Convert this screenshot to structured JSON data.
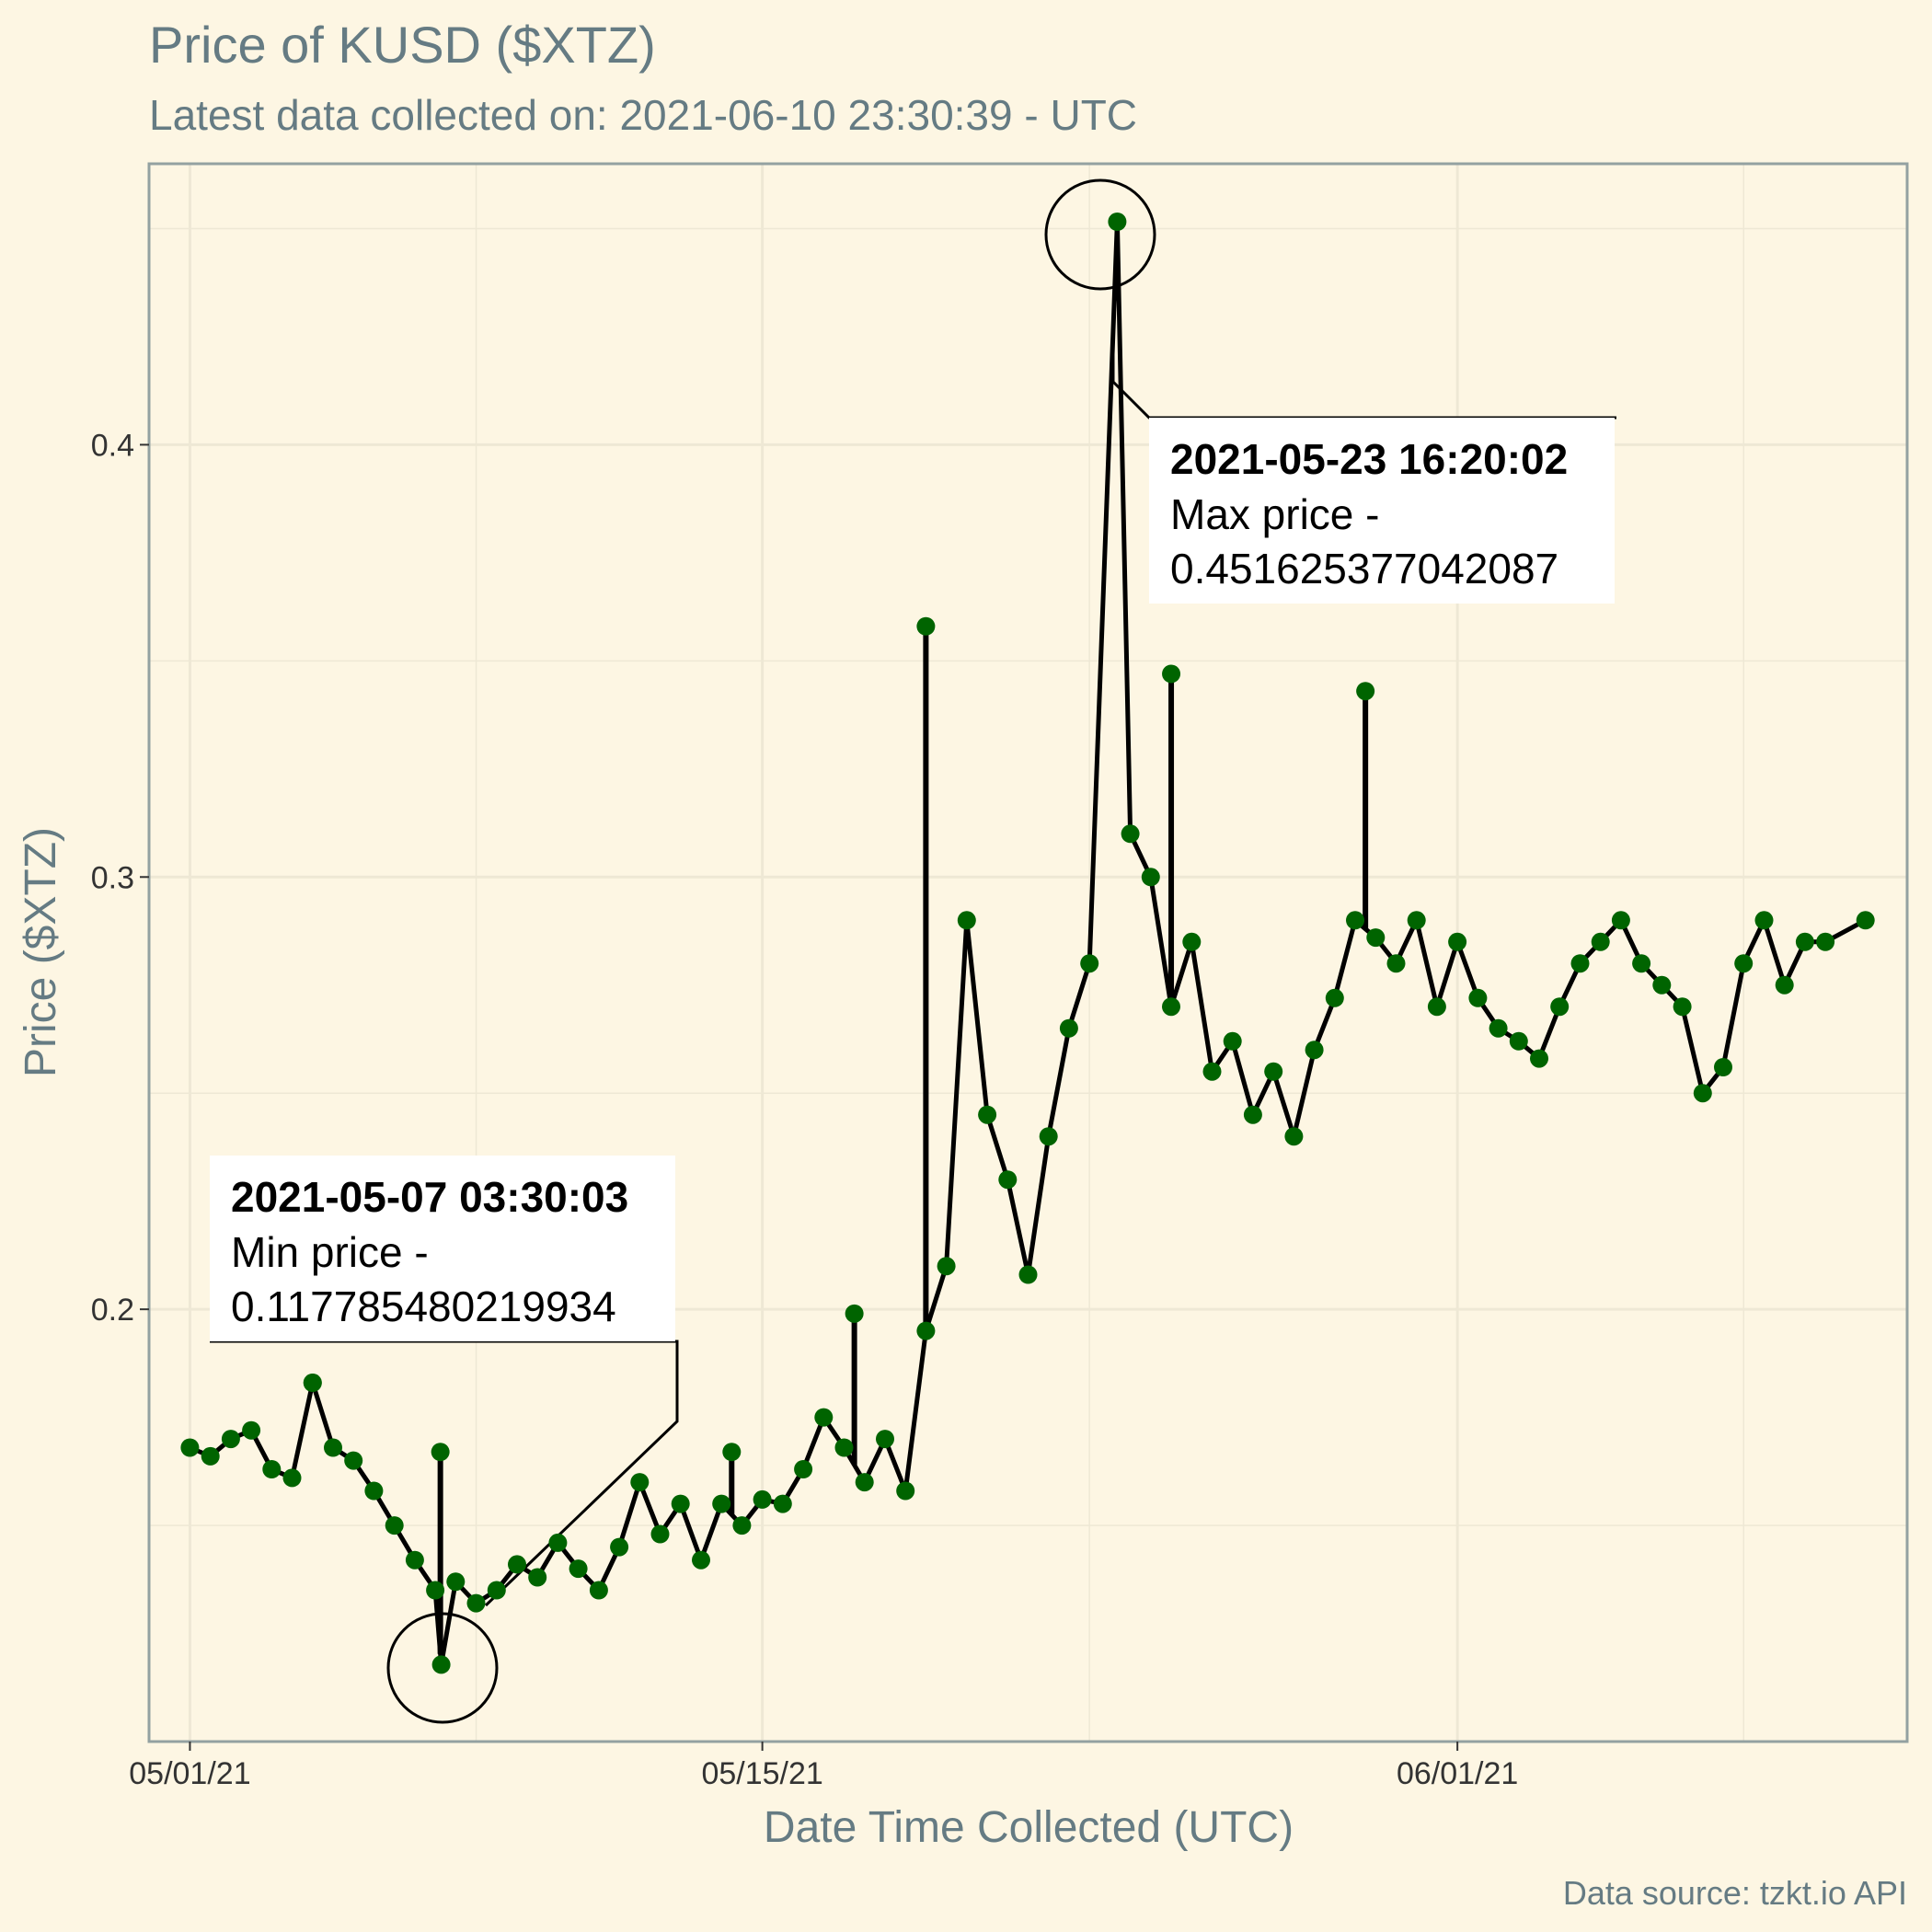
{
  "chart_data": {
    "type": "line",
    "title": "Price of KUSD ($XTZ)",
    "subtitle": "Latest data collected on: 2021-06-10 23:30:39  - UTC",
    "xlabel": "Date Time Collected (UTC)",
    "ylabel": "Price ($XTZ)",
    "caption": "Data source: tzkt.io API",
    "x_ticks": [
      "05/01/21",
      "05/15/21",
      "06/01/21"
    ],
    "y_ticks": [
      "0.2",
      "0.3",
      "0.4"
    ],
    "ylim": [
      0.1,
      0.465
    ],
    "xlim": [
      "2021-04-30",
      "2021-06-12"
    ],
    "grid": true,
    "colors": {
      "line": "#000000",
      "points": "#006400",
      "background": "#fdf6e3",
      "panel_border": "#93a1a1",
      "grid": "#eee8d5"
    },
    "series": [
      {
        "x": [
          "2021-05-01",
          "2021-05-01T12:00",
          "2021-05-02",
          "2021-05-02T12:00",
          "2021-05-03",
          "2021-05-03T12:00",
          "2021-05-04",
          "2021-05-04T12:00",
          "2021-05-05",
          "2021-05-05T12:00",
          "2021-05-06",
          "2021-05-06T12:00",
          "2021-05-07",
          "2021-05-07T03:30:03",
          "2021-05-07T12:00",
          "2021-05-08",
          "2021-05-08T12:00",
          "2021-05-09",
          "2021-05-09T12:00",
          "2021-05-10",
          "2021-05-10T12:00",
          "2021-05-11",
          "2021-05-11T12:00",
          "2021-05-12",
          "2021-05-12T12:00",
          "2021-05-13",
          "2021-05-13T12:00",
          "2021-05-14",
          "2021-05-14T12:00",
          "2021-05-15",
          "2021-05-15T12:00",
          "2021-05-16",
          "2021-05-16T12:00",
          "2021-05-17",
          "2021-05-17T12:00",
          "2021-05-18",
          "2021-05-18T12:00",
          "2021-05-19",
          "2021-05-19T12:00",
          "2021-05-20",
          "2021-05-20T12:00",
          "2021-05-21",
          "2021-05-21T12:00",
          "2021-05-22",
          "2021-05-22T12:00",
          "2021-05-23",
          "2021-05-23T16:20:02",
          "2021-05-24",
          "2021-05-24T12:00",
          "2021-05-25",
          "2021-05-25T12:00",
          "2021-05-26",
          "2021-05-26T12:00",
          "2021-05-27",
          "2021-05-27T12:00",
          "2021-05-28",
          "2021-05-28T12:00",
          "2021-05-29",
          "2021-05-29T12:00",
          "2021-05-30",
          "2021-05-30T12:00",
          "2021-05-31",
          "2021-05-31T12:00",
          "2021-06-01",
          "2021-06-01T12:00",
          "2021-06-02",
          "2021-06-02T12:00",
          "2021-06-03",
          "2021-06-03T12:00",
          "2021-06-04",
          "2021-06-04T12:00",
          "2021-06-05",
          "2021-06-05T12:00",
          "2021-06-06",
          "2021-06-06T12:00",
          "2021-06-07",
          "2021-06-07T12:00",
          "2021-06-08",
          "2021-06-08T12:00",
          "2021-06-09",
          "2021-06-09T12:00",
          "2021-06-10",
          "2021-06-10T23:30:39"
        ],
        "y": [
          0.168,
          0.166,
          0.17,
          0.172,
          0.163,
          0.161,
          0.183,
          0.168,
          0.165,
          0.158,
          0.15,
          0.142,
          0.135,
          0.1178,
          0.137,
          0.132,
          0.135,
          0.141,
          0.138,
          0.146,
          0.14,
          0.135,
          0.145,
          0.16,
          0.148,
          0.155,
          0.142,
          0.155,
          0.15,
          0.156,
          0.155,
          0.163,
          0.175,
          0.168,
          0.16,
          0.17,
          0.158,
          0.195,
          0.21,
          0.29,
          0.245,
          0.23,
          0.208,
          0.24,
          0.265,
          0.28,
          0.4516,
          0.31,
          0.3,
          0.27,
          0.285,
          0.255,
          0.262,
          0.245,
          0.255,
          0.24,
          0.26,
          0.272,
          0.29,
          0.286,
          0.28,
          0.29,
          0.27,
          0.285,
          0.272,
          0.265,
          0.262,
          0.258,
          0.27,
          0.28,
          0.285,
          0.29,
          0.28,
          0.275,
          0.27,
          0.25,
          0.256,
          0.28,
          0.29,
          0.275,
          0.285,
          0.285,
          0.29
        ]
      }
    ],
    "spikes": [
      {
        "x": "2021-05-04",
        "y": 0.183
      },
      {
        "x": "2021-05-07T03:00",
        "y": 0.167
      },
      {
        "x": "2021-05-19",
        "y": 0.358
      },
      {
        "x": "2021-05-25",
        "y": 0.347
      },
      {
        "x": "2021-05-29T18:00",
        "y": 0.343
      },
      {
        "x": "2021-05-17T06:00",
        "y": 0.199
      },
      {
        "x": "2021-05-14T06:00",
        "y": 0.167
      }
    ],
    "annotations": [
      {
        "timestamp": "2021-05-07 03:30:03",
        "label": "Min price -",
        "value": "0.117785480219934"
      },
      {
        "timestamp": "2021-05-23 16:20:02",
        "label": "Max price -",
        "value": "0.451625377042087"
      }
    ]
  }
}
